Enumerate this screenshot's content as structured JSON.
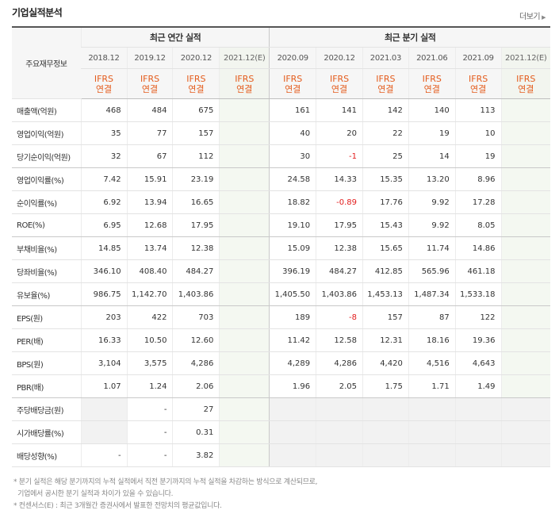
{
  "section_title": "기업실적분석",
  "more_label": "더보기",
  "header": {
    "annual_group": "최근 연간 실적",
    "quarter_group": "최근 분기 실적",
    "row_label": "주요재무정보",
    "annual_periods": [
      "2018.12",
      "2019.12",
      "2020.12",
      "2021.12(E)"
    ],
    "quarter_periods": [
      "2020.09",
      "2020.12",
      "2021.03",
      "2021.06",
      "2021.09",
      "2021.12(E)"
    ],
    "ifrs_top": "IFRS",
    "ifrs_bottom": "연결"
  },
  "rows": [
    {
      "label": "매출액(억원)",
      "annual": [
        "468",
        "484",
        "675",
        ""
      ],
      "quarter": [
        "161",
        "141",
        "142",
        "140",
        "113",
        ""
      ]
    },
    {
      "label": "영업이익(억원)",
      "annual": [
        "35",
        "77",
        "157",
        ""
      ],
      "quarter": [
        "40",
        "20",
        "22",
        "19",
        "10",
        ""
      ]
    },
    {
      "label": "당기순이익(억원)",
      "annual": [
        "32",
        "67",
        "112",
        ""
      ],
      "quarter": [
        "30",
        "-1",
        "25",
        "14",
        "19",
        ""
      ]
    },
    {
      "label": "영업이익률(%)",
      "annual": [
        "7.42",
        "15.91",
        "23.19",
        ""
      ],
      "quarter": [
        "24.58",
        "14.33",
        "15.35",
        "13.20",
        "8.96",
        ""
      ]
    },
    {
      "label": "순이익률(%)",
      "annual": [
        "6.92",
        "13.94",
        "16.65",
        ""
      ],
      "quarter": [
        "18.82",
        "-0.89",
        "17.76",
        "9.92",
        "17.28",
        ""
      ]
    },
    {
      "label": "ROE(%)",
      "annual": [
        "6.95",
        "12.68",
        "17.95",
        ""
      ],
      "quarter": [
        "19.10",
        "17.95",
        "15.43",
        "9.92",
        "8.05",
        ""
      ]
    },
    {
      "label": "부채비율(%)",
      "annual": [
        "14.85",
        "13.74",
        "12.38",
        ""
      ],
      "quarter": [
        "15.09",
        "12.38",
        "15.65",
        "11.74",
        "14.86",
        ""
      ]
    },
    {
      "label": "당좌비율(%)",
      "annual": [
        "346.10",
        "408.40",
        "484.27",
        ""
      ],
      "quarter": [
        "396.19",
        "484.27",
        "412.85",
        "565.96",
        "461.18",
        ""
      ]
    },
    {
      "label": "유보율(%)",
      "annual": [
        "986.75",
        "1,142.70",
        "1,403.86",
        ""
      ],
      "quarter": [
        "1,405.50",
        "1,403.86",
        "1,453.13",
        "1,487.34",
        "1,533.18",
        ""
      ]
    },
    {
      "label": "EPS(원)",
      "annual": [
        "203",
        "422",
        "703",
        ""
      ],
      "quarter": [
        "189",
        "-8",
        "157",
        "87",
        "122",
        ""
      ]
    },
    {
      "label": "PER(배)",
      "annual": [
        "16.33",
        "10.50",
        "12.60",
        ""
      ],
      "quarter": [
        "11.42",
        "12.58",
        "12.31",
        "18.16",
        "19.36",
        ""
      ]
    },
    {
      "label": "BPS(원)",
      "annual": [
        "3,104",
        "3,575",
        "4,286",
        ""
      ],
      "quarter": [
        "4,289",
        "4,286",
        "4,420",
        "4,516",
        "4,643",
        ""
      ]
    },
    {
      "label": "PBR(배)",
      "annual": [
        "1.07",
        "1.24",
        "2.06",
        ""
      ],
      "quarter": [
        "1.96",
        "2.05",
        "1.75",
        "1.71",
        "1.49",
        ""
      ]
    },
    {
      "label": "주당배당금(원)",
      "annual": [
        "",
        "-",
        "27",
        ""
      ],
      "quarter": [
        "",
        "",
        "",
        "",
        "",
        ""
      ]
    },
    {
      "label": "시가배당률(%)",
      "annual": [
        "",
        "-",
        "0.31",
        ""
      ],
      "quarter": [
        "",
        "",
        "",
        "",
        "",
        ""
      ]
    },
    {
      "label": "배당성향(%)",
      "annual": [
        "-",
        "-",
        "3.82",
        ""
      ],
      "quarter": [
        "",
        "",
        "",
        "",
        "",
        ""
      ]
    }
  ],
  "notes": [
    "* 분기 실적은 해당 분기까지의 누적 실적에서 직전 분기까지의 누적 실적을 차감하는 방식으로 계산되므로,",
    "  기업에서 공시한 분기 실적과 차이가 있을 수 있습니다.",
    "* 컨센서스(E) : 최근 3개월간 증권사에서 발표한 전망치의 평균값입니다."
  ],
  "colors": {
    "ifrs": "#e45c1d",
    "negative": "#e21c1c",
    "estimate_bg": "#f4f8f1"
  }
}
